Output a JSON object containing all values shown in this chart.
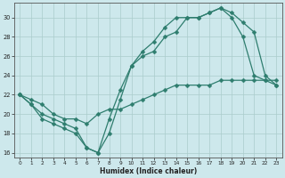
{
  "xlabel": "Humidex (Indice chaleur)",
  "bg_color": "#cde8ec",
  "grid_color": "#aacccc",
  "line_color": "#2e7d6e",
  "xlim": [
    -0.5,
    23.5
  ],
  "ylim": [
    15.5,
    31.5
  ],
  "yticks": [
    16,
    18,
    20,
    22,
    24,
    26,
    28,
    30
  ],
  "xticks": [
    0,
    1,
    2,
    3,
    4,
    5,
    6,
    7,
    8,
    9,
    10,
    11,
    12,
    13,
    14,
    15,
    16,
    17,
    18,
    19,
    20,
    21,
    22,
    23
  ],
  "line1_x": [
    0,
    1,
    2,
    3,
    4,
    5,
    6,
    7,
    8,
    9,
    10,
    11,
    12,
    13,
    14,
    15,
    16,
    17,
    18,
    19,
    20,
    21,
    22,
    23
  ],
  "line1_y": [
    22,
    21,
    19.5,
    19,
    18.5,
    18,
    16.5,
    16,
    18,
    21.5,
    25,
    26,
    26.5,
    28,
    28.5,
    30,
    30,
    30.5,
    31,
    30,
    28,
    24,
    23.5,
    23
  ],
  "line2_x": [
    0,
    1,
    2,
    3,
    4,
    5,
    6,
    7,
    8,
    9,
    10,
    11,
    12,
    13,
    14,
    15,
    16,
    17,
    18,
    19,
    20,
    21,
    22,
    23
  ],
  "line2_y": [
    22,
    21,
    20,
    19.5,
    19,
    18.5,
    16.5,
    16,
    19.5,
    22.5,
    25,
    26.5,
    27.5,
    29,
    30,
    30,
    30,
    30.5,
    31,
    30.5,
    29.5,
    28.5,
    24,
    23
  ],
  "line3_x": [
    0,
    1,
    2,
    3,
    4,
    5,
    6,
    7,
    8,
    9,
    10,
    11,
    12,
    13,
    14,
    15,
    16,
    17,
    18,
    19,
    20,
    21,
    22,
    23
  ],
  "line3_y": [
    22,
    21.5,
    21,
    20,
    19.5,
    19.5,
    19,
    20,
    20.5,
    20.5,
    21,
    21.5,
    22,
    22.5,
    23,
    23,
    23,
    23,
    23.5,
    23.5,
    23.5,
    23.5,
    23.5,
    23.5
  ],
  "markersize": 2.5,
  "linewidth": 0.9
}
